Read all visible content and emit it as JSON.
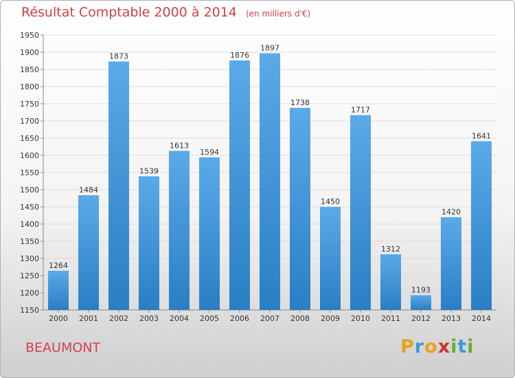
{
  "title": "Résultat Comptable 2000 à 2014",
  "unit": "(en milliers d'€)",
  "place": "BEAUMONT",
  "logo": {
    "letters": [
      "P",
      "r",
      "o",
      "x",
      "i",
      "t",
      "i"
    ],
    "colors": [
      "#e8a020",
      "#3a9ad8",
      "#f0a020",
      "#d03030",
      "#60b030",
      "#3a9ad8",
      "#60b030"
    ]
  },
  "colors": {
    "bar_light": "#5aaae8",
    "bar_dark": "#2a7ec4",
    "title": "#d0404b",
    "grid": "#dcdcdc"
  },
  "chart_data": {
    "type": "bar",
    "categories": [
      "2000",
      "2001",
      "2002",
      "2003",
      "2004",
      "2005",
      "2006",
      "2007",
      "2008",
      "2009",
      "2010",
      "2011",
      "2012",
      "2013",
      "2014"
    ],
    "values": [
      1264,
      1484,
      1873,
      1539,
      1613,
      1594,
      1876,
      1897,
      1738,
      1450,
      1717,
      1312,
      1193,
      1420,
      1641
    ],
    "ylim": [
      1150,
      1950
    ],
    "yticks": [
      1150,
      1200,
      1250,
      1300,
      1350,
      1400,
      1450,
      1500,
      1550,
      1600,
      1650,
      1700,
      1750,
      1800,
      1850,
      1900,
      1950
    ],
    "grid": true
  }
}
